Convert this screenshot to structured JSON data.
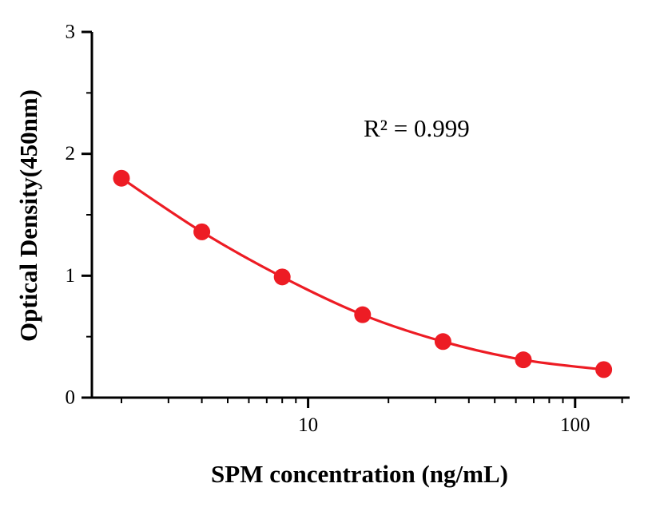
{
  "chart_data": {
    "type": "scatter",
    "title": "",
    "xlabel": "SPM concentration (ng/mL)",
    "ylabel": "Optical Density(450nm)",
    "annotation": "R² = 0.999",
    "xscale": "log",
    "xlim": [
      1.55,
      160
    ],
    "ylim": [
      0,
      3
    ],
    "x": [
      2,
      4,
      8,
      16,
      32,
      64,
      128
    ],
    "y": [
      1.8,
      1.36,
      0.99,
      0.68,
      0.46,
      0.31,
      0.23
    ],
    "x_ticks": [
      {
        "value": 10,
        "label": "10"
      },
      {
        "value": 100,
        "label": "100"
      }
    ],
    "y_ticks": [
      {
        "value": 0,
        "label": "0"
      },
      {
        "value": 1,
        "label": "1"
      },
      {
        "value": 2,
        "label": "2"
      },
      {
        "value": 3,
        "label": "3"
      }
    ],
    "y_minor_ticks": [
      0.5,
      1.5,
      2.5
    ],
    "x_minor_ticks": [
      2,
      3,
      4,
      5,
      6,
      7,
      8,
      9,
      20,
      30,
      40,
      50,
      60,
      70,
      80,
      90,
      150
    ],
    "grid": false,
    "legend": null,
    "colors": {
      "line": "#ed1c24",
      "marker": "#ed1c24",
      "axis": "#000000",
      "text": "#000000",
      "background": "#ffffff"
    }
  }
}
